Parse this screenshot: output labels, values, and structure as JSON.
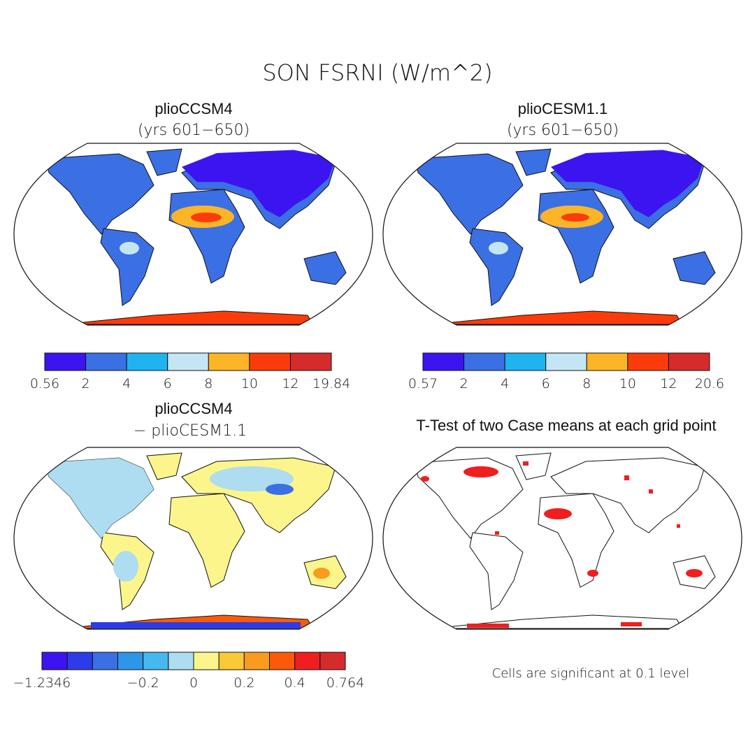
{
  "title": "SON FSRNI (W/m^2)",
  "panels": [
    {
      "title": "plioCCSM4",
      "subtitle": "(yrs 601−650)",
      "colorbar": {
        "colors": [
          "#3c14f0",
          "#3b6fe4",
          "#1fb4f0",
          "#c4e6f4",
          "#fbb526",
          "#fb3c0a",
          "#d52b2b"
        ],
        "labels": [
          "0.56",
          "2",
          "4",
          "6",
          "8",
          "10",
          "12",
          "19.84"
        ]
      }
    },
    {
      "title": "plioCESM1.1",
      "subtitle": "(yrs 601−650)",
      "colorbar": {
        "colors": [
          "#3c14f0",
          "#3b6fe4",
          "#1fb4f0",
          "#c4e6f4",
          "#fbb526",
          "#fb3c0a",
          "#d52b2b"
        ],
        "labels": [
          "0.57",
          "2",
          "4",
          "6",
          "8",
          "10",
          "12",
          "20.6"
        ]
      }
    },
    {
      "title": "plioCCSM4",
      "subtitle": "− plioCESM1.1",
      "colorbar": {
        "colors": [
          "#3c14f0",
          "#2b3ce8",
          "#3b6fe4",
          "#2e96e8",
          "#46b8f0",
          "#aedcf0",
          "#fbf58c",
          "#fbc836",
          "#fb9b1e",
          "#fb5a0a",
          "#f01e1e",
          "#d52b2b"
        ],
        "labels": [
          "−1.2346",
          null,
          null,
          null,
          "−0.2",
          null,
          "0",
          null,
          "0.2",
          null,
          "0.4",
          null,
          "0.764"
        ]
      }
    },
    {
      "title": "T-Test of two Case means at each grid point",
      "note": "Cells are significant at 0.1 level"
    }
  ]
}
